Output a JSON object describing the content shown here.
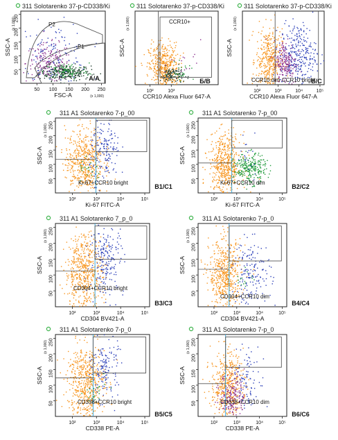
{
  "colors": {
    "population": "#f7941d",
    "blue_events": "#2b3fb8",
    "green_events": "#1f9a3a",
    "purple_events": "#8a2d8e",
    "dark_events": "#1c3a2a",
    "gate_line": "#555555",
    "quadrant_line": "#2a9fd6",
    "indicator_circle": "#3bb34a"
  },
  "icons": [
    "status-circle-icon"
  ],
  "chart_data": [
    {
      "panel_label": "A/A",
      "type": "scatter",
      "title": "311 Solotarenko 37-p-CD338/Ki",
      "xlabel": "FSC-A",
      "ylabel": "SSC-A",
      "x_multiplier": "(x 1,000)",
      "y_multiplier": "(x 1,000)",
      "x_ticks": [
        "50",
        "100",
        "150",
        "200",
        "250"
      ],
      "y_ticks": [
        "50",
        "100",
        "150",
        "200",
        "250"
      ],
      "xlim": [
        0,
        262
      ],
      "ylim": [
        0,
        262
      ],
      "scale": "linear",
      "gate_labels": [
        "P2",
        "P1"
      ],
      "populations": [
        {
          "color": "dark_events",
          "cx": 135,
          "cy": 40,
          "sx": 40,
          "sy": 14,
          "count": 260
        },
        {
          "color": "purple_events",
          "cx": 85,
          "cy": 75,
          "sx": 35,
          "sy": 35,
          "count": 190
        },
        {
          "color": "blue_events",
          "cx": 100,
          "cy": 110,
          "sx": 55,
          "sy": 55,
          "count": 120
        },
        {
          "color": "green_events",
          "cx": 140,
          "cy": 45,
          "sx": 35,
          "sy": 15,
          "count": 90
        }
      ]
    },
    {
      "panel_label": "Б/B",
      "type": "scatter",
      "title": "311 Solotarenko 37-p-CD338/Ki",
      "xlabel": "CCR10 Alexa Fluor 647-A",
      "ylabel": "SSC-A",
      "y_multiplier": "(x 1,000)",
      "x_ticks": [
        "10²",
        "10³"
      ],
      "y_ticks": [],
      "xlim": [
        0,
        5
      ],
      "ylim": [
        0,
        262
      ],
      "scale": "log",
      "gate_labels": [
        "CCR10+"
      ],
      "populations": [
        {
          "color": "population",
          "cx": 1.7,
          "cy": 60,
          "sx": 0.45,
          "sy": 45,
          "count": 480
        },
        {
          "color": "dark_events",
          "cx": 2.2,
          "cy": 35,
          "sx": 0.35,
          "sy": 15,
          "count": 110
        },
        {
          "color": "green_events",
          "cx": 2.8,
          "cy": 40,
          "sx": 0.4,
          "sy": 18,
          "count": 25
        },
        {
          "color": "purple_events",
          "cx": 3.1,
          "cy": 70,
          "sx": 0.5,
          "sy": 40,
          "count": 15
        }
      ]
    },
    {
      "panel_label": "B/C",
      "type": "scatter",
      "title": "311 Solotarenko 37-p-CD338/Ki",
      "xlabel": "CCR10 Alexa Fluor 647-A",
      "ylabel": "SSC-A",
      "y_multiplier": "(x 1,000)",
      "x_ticks": [
        "10²",
        "10³",
        "10⁴",
        "10⁵"
      ],
      "y_ticks": [],
      "xlim": [
        0,
        5
      ],
      "ylim": [
        0,
        262
      ],
      "scale": "log",
      "gate_labels": [
        "CCR10 dim",
        "CCR10 bright"
      ],
      "populations": [
        {
          "color": "population",
          "cx": 1.6,
          "cy": 90,
          "sx": 0.4,
          "sy": 55,
          "count": 380
        },
        {
          "color": "purple_events",
          "cx": 2.6,
          "cy": 80,
          "sx": 0.35,
          "sy": 40,
          "count": 220
        },
        {
          "color": "blue_events",
          "cx": 3.4,
          "cy": 110,
          "sx": 0.55,
          "sy": 55,
          "count": 260
        }
      ]
    },
    {
      "panel_label": "B1/C1",
      "type": "scatter",
      "title": "311 A1 Solotarenko 7-p_00",
      "xlabel": "Ki-67 FITC-A",
      "ylabel": "SSC-A",
      "y_multiplier": "(x 1,000)",
      "x_ticks": [
        "10²",
        "10³",
        "10⁴",
        "10⁵"
      ],
      "y_ticks": [
        "50",
        "100",
        "150",
        "200",
        "250"
      ],
      "xlim": [
        0,
        5
      ],
      "ylim": [
        0,
        262
      ],
      "scale": "log",
      "gate_labels": [
        "Ki-67+CCR10 bright"
      ],
      "populations": [
        {
          "color": "population",
          "cx": 1.5,
          "cy": 110,
          "sx": 0.5,
          "sy": 60,
          "count": 520
        },
        {
          "color": "blue_events",
          "cx": 2.6,
          "cy": 150,
          "sx": 0.4,
          "sy": 55,
          "count": 160
        },
        {
          "color": "green_events",
          "cx": 1.8,
          "cy": 80,
          "sx": 0.3,
          "sy": 20,
          "count": 20
        }
      ]
    },
    {
      "panel_label": "B2/C2",
      "type": "scatter",
      "title": "311 A1 Solotarenko 7-p_00",
      "xlabel": "Ki-67 FITC-A",
      "ylabel": "SSC-A",
      "y_multiplier": "(x 1,000)",
      "x_ticks": [
        "10²",
        "10³",
        "10⁴",
        "10⁵"
      ],
      "y_ticks": [
        "50",
        "100",
        "150",
        "200",
        "250"
      ],
      "xlim": [
        0,
        5
      ],
      "ylim": [
        0,
        262
      ],
      "scale": "log",
      "gate_labels": [
        "Ki-67+CCR10 dim"
      ],
      "populations": [
        {
          "color": "population",
          "cx": 1.5,
          "cy": 100,
          "sx": 0.45,
          "sy": 55,
          "count": 520
        },
        {
          "color": "green_events",
          "cx": 2.9,
          "cy": 85,
          "sx": 0.45,
          "sy": 25,
          "count": 260
        },
        {
          "color": "blue_events",
          "cx": 2.8,
          "cy": 140,
          "sx": 0.4,
          "sy": 40,
          "count": 20
        }
      ]
    },
    {
      "panel_label": "B3/C3",
      "type": "scatter",
      "title": "311 A1 Solotarenko 7_p_0",
      "xlabel": "CD304 BV421-A",
      "ylabel": "SSC-A",
      "y_multiplier": "(x 1,000)",
      "x_ticks": [
        "10²",
        "10³",
        "10⁴",
        "10⁵"
      ],
      "y_ticks": [
        "50",
        "100",
        "150",
        "200",
        "250"
      ],
      "xlim": [
        0,
        5
      ],
      "ylim": [
        0,
        262
      ],
      "scale": "log",
      "gate_labels": [
        "CD304+CCR10 bright"
      ],
      "populations": [
        {
          "color": "population",
          "cx": 1.5,
          "cy": 110,
          "sx": 0.5,
          "sy": 60,
          "count": 540
        },
        {
          "color": "blue_events",
          "cx": 2.7,
          "cy": 150,
          "sx": 0.45,
          "sy": 55,
          "count": 200
        }
      ]
    },
    {
      "panel_label": "B4/C4",
      "type": "scatter",
      "title": "311 A1 Solotarenko 7-p_0",
      "xlabel": "CD304 BV421-A",
      "ylabel": "SSC-A",
      "y_multiplier": "(x 1,000)",
      "x_ticks": [
        "10²",
        "10³",
        "10⁴",
        "10⁵"
      ],
      "y_ticks": [
        "50",
        "100",
        "150",
        "200",
        "250"
      ],
      "xlim": [
        0,
        5
      ],
      "ylim": [
        0,
        262
      ],
      "scale": "log",
      "gate_labels": [
        "CD304+CCR10 dim"
      ],
      "populations": [
        {
          "color": "population",
          "cx": 1.5,
          "cy": 100,
          "sx": 0.45,
          "sy": 55,
          "count": 520
        },
        {
          "color": "blue_events",
          "cx": 3.0,
          "cy": 110,
          "sx": 0.55,
          "sy": 50,
          "count": 160
        },
        {
          "color": "green_events",
          "cx": 2.6,
          "cy": 90,
          "sx": 0.3,
          "sy": 20,
          "count": 15
        }
      ]
    },
    {
      "panel_label": "B5/C5",
      "type": "scatter",
      "title": "311 A1 Solotarenko 7-p_0",
      "xlabel": "CD338 PE-A",
      "ylabel": "SSC-A",
      "y_multiplier": "(x 1,000)",
      "x_ticks": [
        "10²",
        "10³",
        "10⁴",
        "10⁵"
      ],
      "y_ticks": [
        "50",
        "100",
        "150",
        "200",
        "250"
      ],
      "xlim": [
        0,
        5
      ],
      "ylim": [
        0,
        262
      ],
      "scale": "log",
      "gate_labels": [
        "CD338+CCR10 bright"
      ],
      "populations": [
        {
          "color": "population",
          "cx": 1.6,
          "cy": 110,
          "sx": 0.5,
          "sy": 60,
          "count": 540
        },
        {
          "color": "blue_events",
          "cx": 2.6,
          "cy": 160,
          "sx": 0.35,
          "sy": 50,
          "count": 150
        },
        {
          "color": "green_events",
          "cx": 2.1,
          "cy": 70,
          "sx": 0.3,
          "sy": 25,
          "count": 25
        }
      ]
    },
    {
      "panel_label": "B6/C6",
      "type": "scatter",
      "title": "311 A1 Solotarenko 7-p_0",
      "xlabel": "CD338 PE-A",
      "ylabel": "SSC-A",
      "y_multiplier": "(x 1,000)",
      "x_ticks": [
        "10²",
        "10³",
        "10⁴",
        "10⁵"
      ],
      "y_ticks": [
        "50",
        "100",
        "150",
        "200",
        "250"
      ],
      "xlim": [
        0,
        5
      ],
      "ylim": [
        0,
        262
      ],
      "scale": "log",
      "gate_labels": [
        "CD338+CCR10 dim"
      ],
      "populations": [
        {
          "color": "population",
          "cx": 1.6,
          "cy": 100,
          "sx": 0.45,
          "sy": 55,
          "count": 460
        },
        {
          "color": "purple_events",
          "cx": 1.9,
          "cy": 70,
          "sx": 0.35,
          "sy": 35,
          "count": 180
        },
        {
          "color": "blue_events",
          "cx": 2.8,
          "cy": 120,
          "sx": 0.45,
          "sy": 50,
          "count": 90
        }
      ]
    }
  ]
}
